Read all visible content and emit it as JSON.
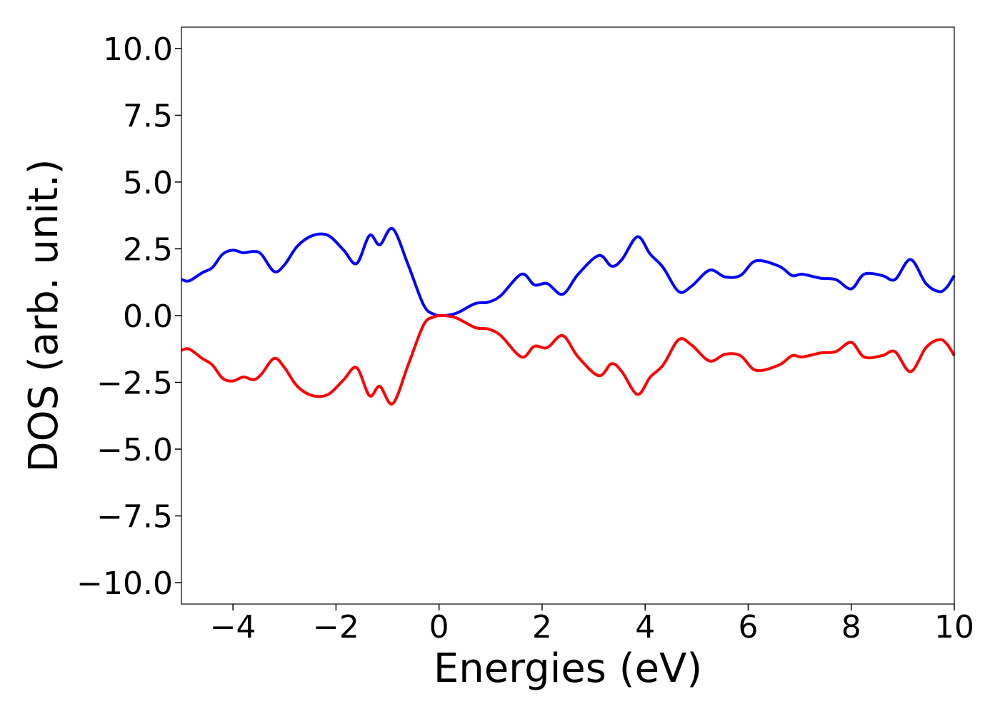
{
  "chart_data": {
    "type": "line",
    "title": "",
    "xlabel": "Energies (eV)",
    "ylabel": "DOS (arb. unit.)",
    "xlim": [
      -5,
      10
    ],
    "ylim": [
      -10.8,
      10.8
    ],
    "grid": false,
    "legend": "none",
    "x_ticks": [
      -4,
      -2,
      0,
      2,
      4,
      6,
      8,
      10
    ],
    "x_tick_labels": [
      "−4",
      "−2",
      "0",
      "2",
      "4",
      "6",
      "8",
      "10"
    ],
    "y_ticks": [
      10.0,
      7.5,
      5.0,
      2.5,
      0.0,
      -2.5,
      -5.0,
      -7.5,
      -10.0
    ],
    "y_tick_labels": [
      "10.0",
      "7.5",
      "5.0",
      "2.5",
      "0.0",
      "−2.5",
      "−5.0",
      "−7.5",
      "−10.0"
    ],
    "series": [
      {
        "color": "#0000ff",
        "points": [
          [
            -5.0,
            1.35
          ],
          [
            -4.85,
            1.3
          ],
          [
            -4.6,
            1.6
          ],
          [
            -4.4,
            1.8
          ],
          [
            -4.2,
            2.3
          ],
          [
            -4.0,
            2.45
          ],
          [
            -3.8,
            2.35
          ],
          [
            -3.6,
            2.4
          ],
          [
            -3.45,
            2.3
          ],
          [
            -3.2,
            1.65
          ],
          [
            -3.0,
            1.9
          ],
          [
            -2.75,
            2.6
          ],
          [
            -2.45,
            3.0
          ],
          [
            -2.15,
            3.0
          ],
          [
            -1.85,
            2.45
          ],
          [
            -1.6,
            1.95
          ],
          [
            -1.35,
            3.0
          ],
          [
            -1.15,
            2.65
          ],
          [
            -0.9,
            3.25
          ],
          [
            -0.6,
            1.9
          ],
          [
            -0.3,
            0.4
          ],
          [
            -0.1,
            0.05
          ],
          [
            0.1,
            0.0
          ],
          [
            0.35,
            0.1
          ],
          [
            0.7,
            0.45
          ],
          [
            0.95,
            0.5
          ],
          [
            1.2,
            0.75
          ],
          [
            1.6,
            1.55
          ],
          [
            1.85,
            1.15
          ],
          [
            2.1,
            1.2
          ],
          [
            2.4,
            0.8
          ],
          [
            2.7,
            1.55
          ],
          [
            3.1,
            2.25
          ],
          [
            3.35,
            1.85
          ],
          [
            3.55,
            2.1
          ],
          [
            3.85,
            2.95
          ],
          [
            4.1,
            2.3
          ],
          [
            4.35,
            1.8
          ],
          [
            4.65,
            0.9
          ],
          [
            4.9,
            1.1
          ],
          [
            5.25,
            1.7
          ],
          [
            5.55,
            1.45
          ],
          [
            5.85,
            1.5
          ],
          [
            6.15,
            2.05
          ],
          [
            6.6,
            1.85
          ],
          [
            6.85,
            1.5
          ],
          [
            7.05,
            1.55
          ],
          [
            7.4,
            1.4
          ],
          [
            7.7,
            1.35
          ],
          [
            8.0,
            1.0
          ],
          [
            8.25,
            1.55
          ],
          [
            8.6,
            1.5
          ],
          [
            8.85,
            1.35
          ],
          [
            9.15,
            2.1
          ],
          [
            9.45,
            1.2
          ],
          [
            9.7,
            0.9
          ],
          [
            9.85,
            1.05
          ],
          [
            10.0,
            1.5
          ]
        ]
      },
      {
        "color": "#ff0000",
        "points": [
          [
            -5.0,
            -1.3
          ],
          [
            -4.85,
            -1.25
          ],
          [
            -4.6,
            -1.6
          ],
          [
            -4.4,
            -1.85
          ],
          [
            -4.2,
            -2.35
          ],
          [
            -4.0,
            -2.45
          ],
          [
            -3.8,
            -2.3
          ],
          [
            -3.6,
            -2.4
          ],
          [
            -3.45,
            -2.2
          ],
          [
            -3.2,
            -1.6
          ],
          [
            -3.0,
            -1.95
          ],
          [
            -2.75,
            -2.65
          ],
          [
            -2.45,
            -3.0
          ],
          [
            -2.15,
            -2.95
          ],
          [
            -1.85,
            -2.4
          ],
          [
            -1.6,
            -1.95
          ],
          [
            -1.35,
            -3.0
          ],
          [
            -1.15,
            -2.65
          ],
          [
            -0.9,
            -3.3
          ],
          [
            -0.6,
            -1.85
          ],
          [
            -0.3,
            -0.35
          ],
          [
            -0.1,
            -0.05
          ],
          [
            0.1,
            0.0
          ],
          [
            0.35,
            -0.1
          ],
          [
            0.7,
            -0.45
          ],
          [
            0.95,
            -0.5
          ],
          [
            1.2,
            -0.75
          ],
          [
            1.6,
            -1.55
          ],
          [
            1.85,
            -1.15
          ],
          [
            2.1,
            -1.2
          ],
          [
            2.4,
            -0.75
          ],
          [
            2.7,
            -1.55
          ],
          [
            3.1,
            -2.25
          ],
          [
            3.35,
            -1.8
          ],
          [
            3.55,
            -2.1
          ],
          [
            3.85,
            -2.95
          ],
          [
            4.1,
            -2.3
          ],
          [
            4.35,
            -1.85
          ],
          [
            4.65,
            -0.9
          ],
          [
            4.9,
            -1.1
          ],
          [
            5.25,
            -1.7
          ],
          [
            5.55,
            -1.45
          ],
          [
            5.85,
            -1.5
          ],
          [
            6.15,
            -2.05
          ],
          [
            6.6,
            -1.85
          ],
          [
            6.85,
            -1.5
          ],
          [
            7.05,
            -1.55
          ],
          [
            7.4,
            -1.4
          ],
          [
            7.7,
            -1.35
          ],
          [
            8.0,
            -1.0
          ],
          [
            8.25,
            -1.55
          ],
          [
            8.6,
            -1.5
          ],
          [
            8.85,
            -1.35
          ],
          [
            9.15,
            -2.1
          ],
          [
            9.45,
            -1.2
          ],
          [
            9.7,
            -0.9
          ],
          [
            9.85,
            -1.05
          ],
          [
            10.0,
            -1.5
          ]
        ]
      }
    ]
  }
}
